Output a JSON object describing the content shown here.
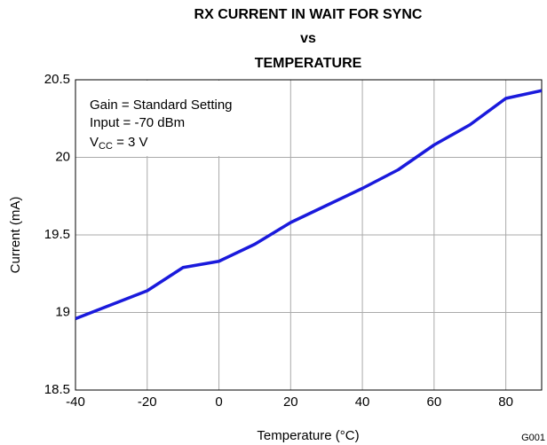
{
  "chart_data": {
    "type": "line",
    "title": [
      "RX CURRENT IN WAIT FOR SYNC",
      "vs",
      "TEMPERATURE"
    ],
    "x_label": "Temperature (°C)",
    "y_label": "Current (mA)",
    "figure_id": "G001",
    "annotations": [
      "Gain = Standard Setting",
      "Input = -70 dBm"
    ],
    "vcc_annotation": {
      "symbol": "V",
      "subscript": "CC",
      "rest": " = 3 V"
    },
    "x": [
      -40,
      -30,
      -20,
      -10,
      0,
      10,
      20,
      30,
      40,
      50,
      60,
      70,
      80,
      90
    ],
    "series": [
      {
        "name": "Current",
        "color": "#1a1adc",
        "values": [
          18.96,
          19.05,
          19.14,
          19.29,
          19.33,
          19.44,
          19.58,
          19.69,
          19.8,
          19.92,
          20.08,
          20.21,
          20.38,
          20.43
        ]
      }
    ],
    "xlim": [
      -40,
      90
    ],
    "xticks": [
      -40,
      -20,
      0,
      20,
      40,
      60,
      80
    ],
    "ylim": [
      18.5,
      20.5
    ],
    "yticks": [
      18.5,
      19,
      19.5,
      20,
      20.5
    ],
    "grid": true
  }
}
